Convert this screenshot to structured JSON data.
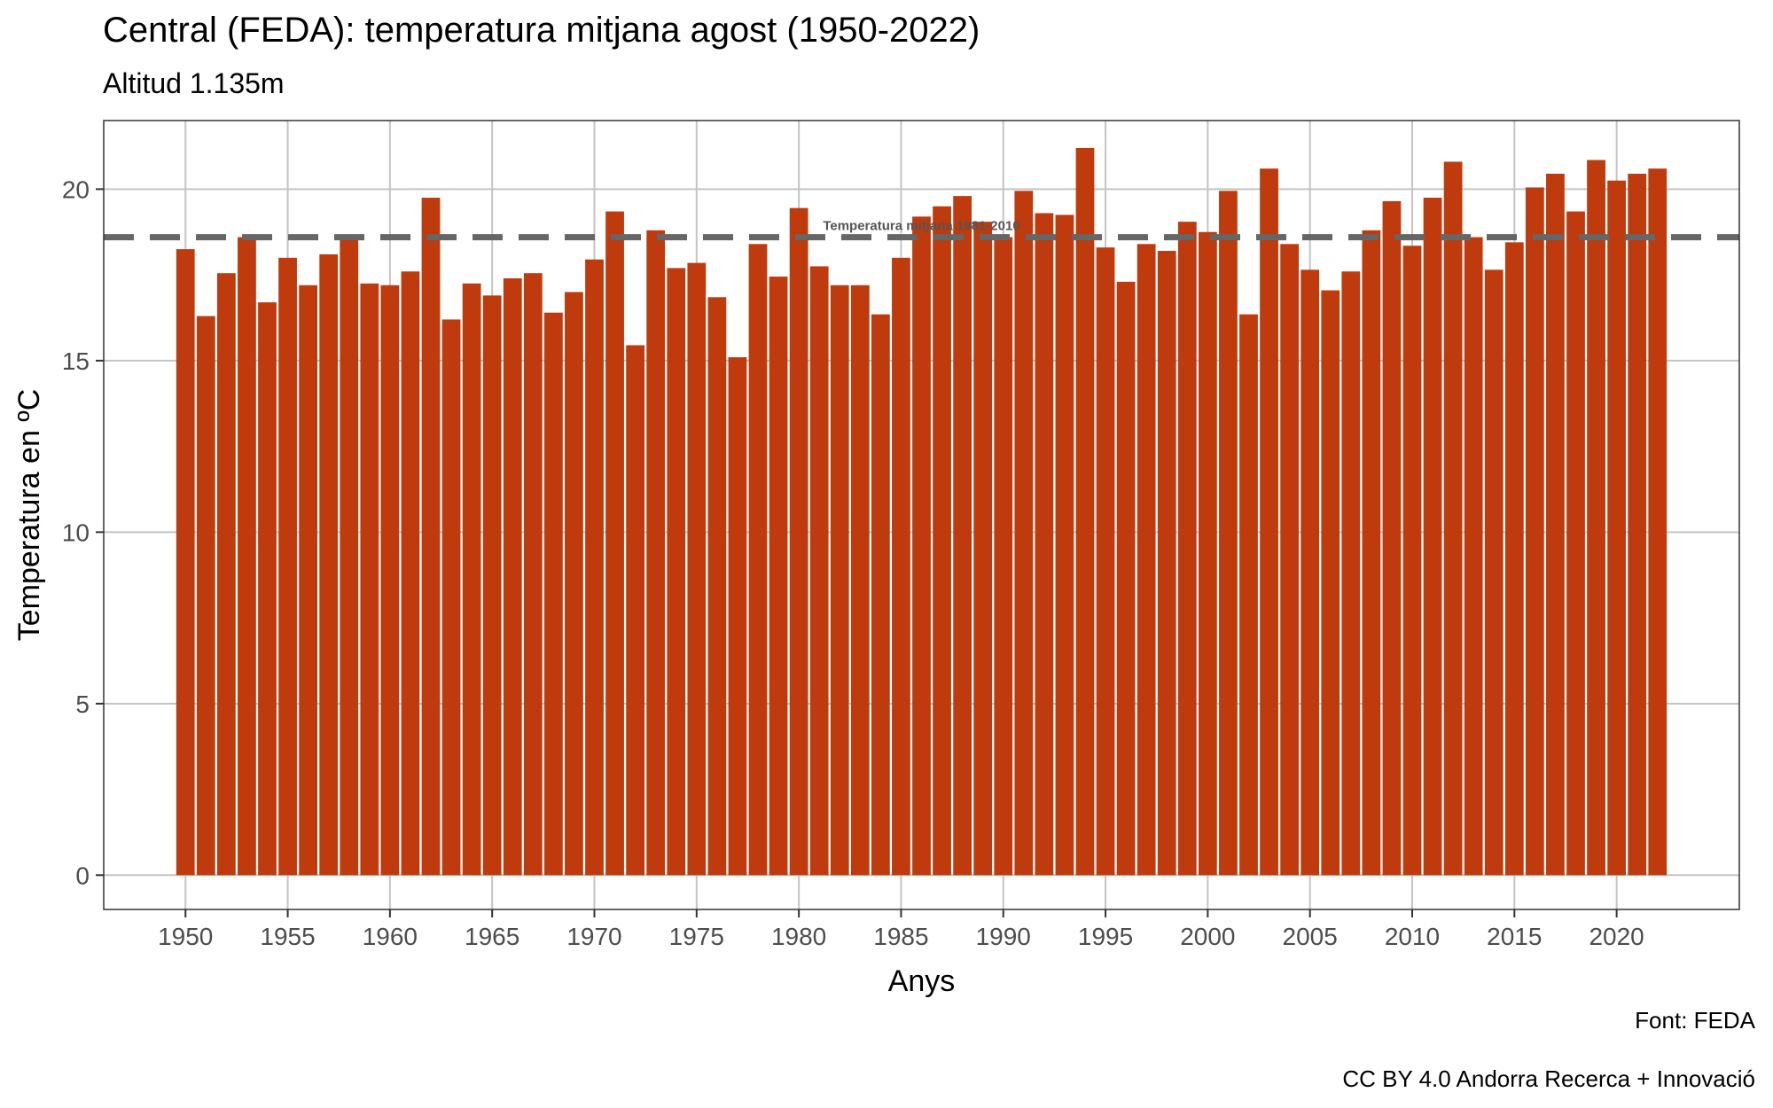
{
  "chart_data": {
    "type": "bar",
    "title": "Central (FEDA): temperatura mitjana  agost (1950-2022)",
    "subtitle": "Altitud 1.135m",
    "xlabel": "Anys",
    "ylabel": "Temperatura en ºC",
    "caption_source": "Font: FEDA",
    "caption_license": "CC BY 4.0 Andorra Recerca + Innovació",
    "ylim": [
      -1,
      22
    ],
    "xlim": [
      1946,
      2026
    ],
    "x_ticks": [
      1950,
      1955,
      1960,
      1965,
      1970,
      1975,
      1980,
      1985,
      1990,
      1995,
      2000,
      2005,
      2010,
      2015,
      2020
    ],
    "y_ticks": [
      0,
      5,
      10,
      15,
      20
    ],
    "grid": true,
    "bar_color": "#bf3a0c",
    "reference_line": {
      "value": 18.6,
      "label": "Temperatura mitjana 1981-2010",
      "color": "#666666",
      "style": "dashed"
    },
    "years": [
      1950,
      1951,
      1952,
      1953,
      1954,
      1955,
      1956,
      1957,
      1958,
      1959,
      1960,
      1961,
      1962,
      1963,
      1964,
      1965,
      1966,
      1967,
      1968,
      1969,
      1970,
      1971,
      1972,
      1973,
      1974,
      1975,
      1976,
      1977,
      1978,
      1979,
      1980,
      1981,
      1982,
      1983,
      1984,
      1985,
      1986,
      1987,
      1988,
      1989,
      1990,
      1991,
      1992,
      1993,
      1994,
      1995,
      1996,
      1997,
      1998,
      1999,
      2000,
      2001,
      2002,
      2003,
      2004,
      2005,
      2006,
      2007,
      2008,
      2009,
      2010,
      2011,
      2012,
      2013,
      2014,
      2015,
      2016,
      2017,
      2018,
      2019,
      2020,
      2021,
      2022
    ],
    "values": [
      18.25,
      16.3,
      17.55,
      18.6,
      16.7,
      18.0,
      17.2,
      18.1,
      18.6,
      17.25,
      17.2,
      17.6,
      19.75,
      16.2,
      17.25,
      16.9,
      17.4,
      17.55,
      16.4,
      17.0,
      17.95,
      19.35,
      15.45,
      18.8,
      17.7,
      17.85,
      16.85,
      15.1,
      18.4,
      17.45,
      19.45,
      17.75,
      17.2,
      17.2,
      16.35,
      18.0,
      19.2,
      19.5,
      19.8,
      19.05,
      18.6,
      19.95,
      19.3,
      19.25,
      21.2,
      18.3,
      17.3,
      18.4,
      18.2,
      19.05,
      18.75,
      19.95,
      16.35,
      20.6,
      18.4,
      17.65,
      17.05,
      17.6,
      18.8,
      19.65,
      18.35,
      19.75,
      20.8,
      18.6,
      17.65,
      18.45,
      20.05,
      20.45,
      19.35,
      20.85,
      20.25,
      20.45,
      20.6
    ]
  }
}
